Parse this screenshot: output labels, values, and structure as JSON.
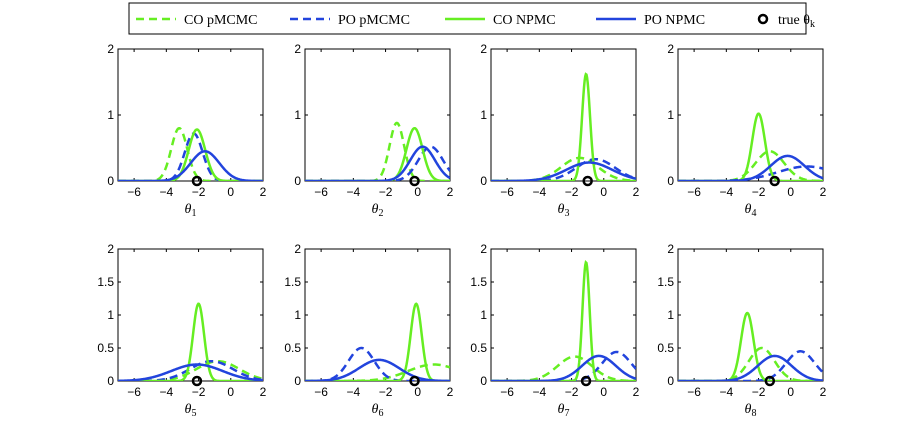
{
  "chart_data": {
    "type": "line",
    "legend": {
      "entries": [
        {
          "label": "CO pMCMC",
          "color": "#66ee22",
          "dash": true,
          "marker": false
        },
        {
          "label": "PO pMCMC",
          "color": "#2244dd",
          "dash": true,
          "marker": false
        },
        {
          "label": "CO NPMC",
          "color": "#66ee22",
          "dash": false,
          "marker": false
        },
        {
          "label": "PO NPMC",
          "color": "#2244dd",
          "dash": false,
          "marker": false
        },
        {
          "label": "true θ",
          "sub": "k",
          "color": "#000000",
          "dash": false,
          "marker": true
        }
      ]
    },
    "x_range": [
      -7,
      2
    ],
    "x_ticks": [
      -6,
      -4,
      -2,
      0,
      2
    ],
    "panels": [
      {
        "xlabel": "θ",
        "sub": "1",
        "ylim": [
          0,
          2
        ],
        "y_ticks": [
          "0",
          "1",
          "2"
        ],
        "true_value": -2.1,
        "series": [
          {
            "name": "CO pMCMC",
            "mu": -3.2,
            "peak": 0.8
          },
          {
            "name": "PO pMCMC",
            "mu": -2.3,
            "peak": 0.72
          },
          {
            "name": "CO NPMC",
            "mu": -2.1,
            "peak": 0.78
          },
          {
            "name": "PO NPMC",
            "mu": -1.6,
            "peak": 0.45
          }
        ]
      },
      {
        "xlabel": "θ",
        "sub": "2",
        "ylim": [
          0,
          2
        ],
        "y_ticks": [
          "0",
          "1",
          "2"
        ],
        "true_value": -0.2,
        "series": [
          {
            "name": "CO pMCMC",
            "mu": -1.3,
            "peak": 0.88
          },
          {
            "name": "PO pMCMC",
            "mu": 0.8,
            "peak": 0.52
          },
          {
            "name": "CO NPMC",
            "mu": -0.2,
            "peak": 0.8
          },
          {
            "name": "PO NPMC",
            "mu": 0.3,
            "peak": 0.52
          }
        ]
      },
      {
        "xlabel": "θ",
        "sub": "3",
        "ylim": [
          0,
          2
        ],
        "y_ticks": [
          "0",
          "1",
          "2"
        ],
        "true_value": -1.0,
        "series": [
          {
            "name": "CO pMCMC",
            "mu": -1.5,
            "peak": 0.35
          },
          {
            "name": "PO pMCMC",
            "mu": -0.5,
            "peak": 0.33
          },
          {
            "name": "CO NPMC",
            "mu": -1.1,
            "peak": 1.62
          },
          {
            "name": "PO NPMC",
            "mu": -0.9,
            "peak": 0.28
          }
        ]
      },
      {
        "xlabel": "θ",
        "sub": "4",
        "ylim": [
          0,
          2
        ],
        "y_ticks": [
          "0",
          "1",
          "2"
        ],
        "true_value": -1.0,
        "series": [
          {
            "name": "CO pMCMC",
            "mu": -1.3,
            "peak": 0.45
          },
          {
            "name": "PO pMCMC",
            "mu": 1.0,
            "peak": 0.22
          },
          {
            "name": "CO NPMC",
            "mu": -2.0,
            "peak": 1.02
          },
          {
            "name": "PO NPMC",
            "mu": -0.2,
            "peak": 0.38
          }
        ]
      },
      {
        "xlabel": "θ",
        "sub": "5",
        "ylim": [
          0,
          2
        ],
        "y_ticks": [
          "0",
          "0.5",
          "1",
          "1.5",
          "2"
        ],
        "true_value": -2.1,
        "series": [
          {
            "name": "CO pMCMC",
            "mu": -0.8,
            "peak": 0.3
          },
          {
            "name": "PO pMCMC",
            "mu": -1.2,
            "peak": 0.3
          },
          {
            "name": "CO NPMC",
            "mu": -2.0,
            "peak": 1.17
          },
          {
            "name": "PO NPMC",
            "mu": -2.1,
            "peak": 0.25
          }
        ]
      },
      {
        "xlabel": "θ",
        "sub": "6",
        "ylim": [
          0,
          2
        ],
        "y_ticks": [
          "0",
          "0.5",
          "1",
          "1.5",
          "2"
        ],
        "true_value": -0.2,
        "series": [
          {
            "name": "CO pMCMC",
            "mu": 1.0,
            "peak": 0.25
          },
          {
            "name": "PO pMCMC",
            "mu": -3.5,
            "peak": 0.5
          },
          {
            "name": "CO NPMC",
            "mu": -0.1,
            "peak": 1.17
          },
          {
            "name": "PO NPMC",
            "mu": -2.4,
            "peak": 0.32
          }
        ]
      },
      {
        "xlabel": "θ",
        "sub": "7",
        "ylim": [
          0,
          2
        ],
        "y_ticks": [
          "0",
          "0.5",
          "1",
          "1.5",
          "2"
        ],
        "true_value": -1.1,
        "series": [
          {
            "name": "CO pMCMC",
            "mu": -1.8,
            "peak": 0.37
          },
          {
            "name": "PO pMCMC",
            "mu": 0.8,
            "peak": 0.44
          },
          {
            "name": "CO NPMC",
            "mu": -1.1,
            "peak": 1.8
          },
          {
            "name": "PO NPMC",
            "mu": -0.3,
            "peak": 0.38
          }
        ]
      },
      {
        "xlabel": "θ",
        "sub": "8",
        "ylim": [
          0,
          2
        ],
        "y_ticks": [
          "0",
          "0.5",
          "1",
          "1.5",
          "2"
        ],
        "true_value": -1.3,
        "series": [
          {
            "name": "CO pMCMC",
            "mu": -1.8,
            "peak": 0.5
          },
          {
            "name": "PO pMCMC",
            "mu": 0.6,
            "peak": 0.45
          },
          {
            "name": "CO NPMC",
            "mu": -2.7,
            "peak": 1.03
          },
          {
            "name": "PO NPMC",
            "mu": -1.0,
            "peak": 0.38
          }
        ]
      }
    ]
  }
}
